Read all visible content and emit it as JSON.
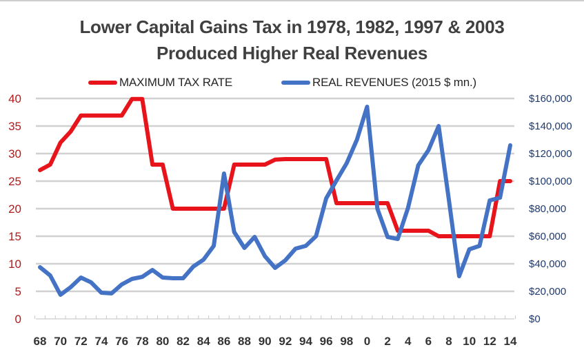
{
  "chart_data": {
    "type": "line",
    "title": "Lower Capital Gains Tax in 1978, 1982, 1997 & 2003",
    "subtitle": "Produced Higher Real Revenues",
    "title_lines": [
      "Lower Capital Gains Tax in 1978, 1982, 1997 & 2003",
      "Produced Higher Real Revenues"
    ],
    "xlabel": "",
    "ylabel": "",
    "ylabel_right": "",
    "x": [
      1968,
      1969,
      1970,
      1971,
      1972,
      1973,
      1974,
      1975,
      1976,
      1977,
      1978,
      1979,
      1980,
      1981,
      1982,
      1983,
      1984,
      1985,
      1986,
      1987,
      1988,
      1989,
      1990,
      1991,
      1992,
      1993,
      1994,
      1995,
      1996,
      1997,
      1998,
      1999,
      2000,
      2001,
      2002,
      2003,
      2004,
      2005,
      2006,
      2007,
      2008,
      2009,
      2010,
      2011,
      2012,
      2013,
      2014
    ],
    "x_tick_labels": [
      "68",
      "70",
      "72",
      "74",
      "76",
      "78",
      "80",
      "82",
      "84",
      "86",
      "88",
      "90",
      "92",
      "94",
      "96",
      "98",
      "0",
      "2",
      "4",
      "6",
      "8",
      "10",
      "12",
      "14"
    ],
    "x_tick_years": [
      1968,
      1970,
      1972,
      1974,
      1976,
      1978,
      1980,
      1982,
      1984,
      1986,
      1988,
      1990,
      1992,
      1994,
      1996,
      1998,
      2000,
      2002,
      2004,
      2006,
      2008,
      2010,
      2012,
      2014
    ],
    "series": [
      {
        "name": "MAXIMUM TAX RATE",
        "axis": "left",
        "color": "#e8141b",
        "values": [
          27,
          28,
          32,
          34,
          36.9,
          36.9,
          36.9,
          36.9,
          36.9,
          39.9,
          39.9,
          28,
          28,
          20,
          20,
          20,
          20,
          20,
          20,
          28,
          28,
          28,
          28,
          28.9,
          29,
          29,
          29,
          29,
          29,
          21,
          21,
          21,
          21,
          21,
          21,
          16,
          16,
          16,
          16,
          15,
          15,
          15,
          15,
          15,
          15,
          25,
          25
        ]
      },
      {
        "name": "REAL REVENUES (2015 $ mn.)",
        "axis": "right",
        "color": "#4472c4",
        "values": [
          37500,
          31500,
          17500,
          23000,
          30000,
          26500,
          19000,
          18500,
          25000,
          29000,
          30500,
          35500,
          30000,
          29500,
          29500,
          38000,
          43000,
          53000,
          105500,
          63000,
          51500,
          59500,
          45500,
          37000,
          42500,
          51000,
          53000,
          60000,
          87500,
          100500,
          113000,
          130000,
          154000,
          80000,
          59500,
          58000,
          80500,
          111500,
          122500,
          140000,
          86500,
          31000,
          50500,
          53000,
          86000,
          88000,
          126000
        ]
      }
    ],
    "y_left": {
      "ylim": [
        0,
        40
      ],
      "ticks": [
        0,
        5,
        10,
        15,
        20,
        25,
        30,
        35,
        40
      ],
      "tick_labels": [
        "0",
        "5",
        "10",
        "15",
        "20",
        "25",
        "30",
        "35",
        "40"
      ],
      "color": "#b11a1a"
    },
    "y_right": {
      "ylim": [
        0,
        160000
      ],
      "ticks": [
        0,
        20000,
        40000,
        60000,
        80000,
        100000,
        120000,
        140000,
        160000
      ],
      "tick_labels": [
        "$0",
        "$20,000",
        "$40,000",
        "$60,000",
        "$80,000",
        "$100,000",
        "$120,000",
        "$140,000",
        "$160,000"
      ],
      "color": "#1f3a6e"
    },
    "grid": true,
    "legend": {
      "position": "top",
      "entries": [
        "MAXIMUM TAX RATE",
        "REAL REVENUES (2015 $ mn.)"
      ]
    }
  }
}
